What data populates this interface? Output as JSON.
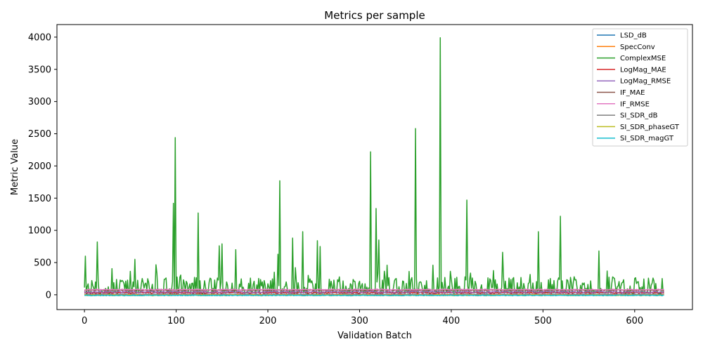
{
  "chart_data": {
    "type": "line",
    "title": "Metrics per sample",
    "xlabel": "Validation Batch",
    "ylabel": "Metric Value",
    "xlim": [
      -30,
      663
    ],
    "ylim": [
      -230,
      4195
    ],
    "xticks": [
      0,
      100,
      200,
      300,
      400,
      500,
      600
    ],
    "yticks": [
      0,
      500,
      1000,
      1500,
      2000,
      2500,
      3000,
      3500,
      4000
    ],
    "grid": false,
    "legend_position": "top-right",
    "n_points": 633,
    "series": [
      {
        "name": "LSD_dB",
        "color": "#1f77b4",
        "base": 6,
        "amp": 3
      },
      {
        "name": "SpecConv",
        "color": "#ff7f0e",
        "base": 1,
        "amp": 0.5
      },
      {
        "name": "ComplexMSE",
        "color": "#2ca02c",
        "base": 130,
        "amp": 150,
        "peaks": [
          [
            1,
            600
          ],
          [
            14,
            820
          ],
          [
            55,
            550
          ],
          [
            97,
            1420
          ],
          [
            99,
            2440
          ],
          [
            124,
            1270
          ],
          [
            147,
            760
          ],
          [
            150,
            790
          ],
          [
            165,
            700
          ],
          [
            211,
            630
          ],
          [
            213,
            1770
          ],
          [
            227,
            880
          ],
          [
            238,
            980
          ],
          [
            254,
            840
          ],
          [
            257,
            750
          ],
          [
            312,
            2220
          ],
          [
            318,
            1340
          ],
          [
            321,
            850
          ],
          [
            361,
            2580
          ],
          [
            388,
            3990
          ],
          [
            417,
            1470
          ],
          [
            456,
            660
          ],
          [
            495,
            980
          ],
          [
            519,
            1220
          ],
          [
            561,
            680
          ]
        ]
      },
      {
        "name": "LogMag_MAE",
        "color": "#d62728",
        "base": 30,
        "amp": 8
      },
      {
        "name": "LogMag_RMSE",
        "color": "#9467bd",
        "base": 45,
        "amp": 10
      },
      {
        "name": "IF_MAE",
        "color": "#8c564b",
        "base": 70,
        "amp": 8
      },
      {
        "name": "IF_RMSE",
        "color": "#e377c2",
        "base": 80,
        "amp": 8
      },
      {
        "name": "SI_SDR_dB",
        "color": "#7f7f7f",
        "base": -2,
        "amp": 6
      },
      {
        "name": "SI_SDR_phaseGT",
        "color": "#bcbd22",
        "base": -8,
        "amp": 8
      },
      {
        "name": "SI_SDR_magGT",
        "color": "#17becf",
        "base": -10,
        "amp": 6
      }
    ]
  }
}
